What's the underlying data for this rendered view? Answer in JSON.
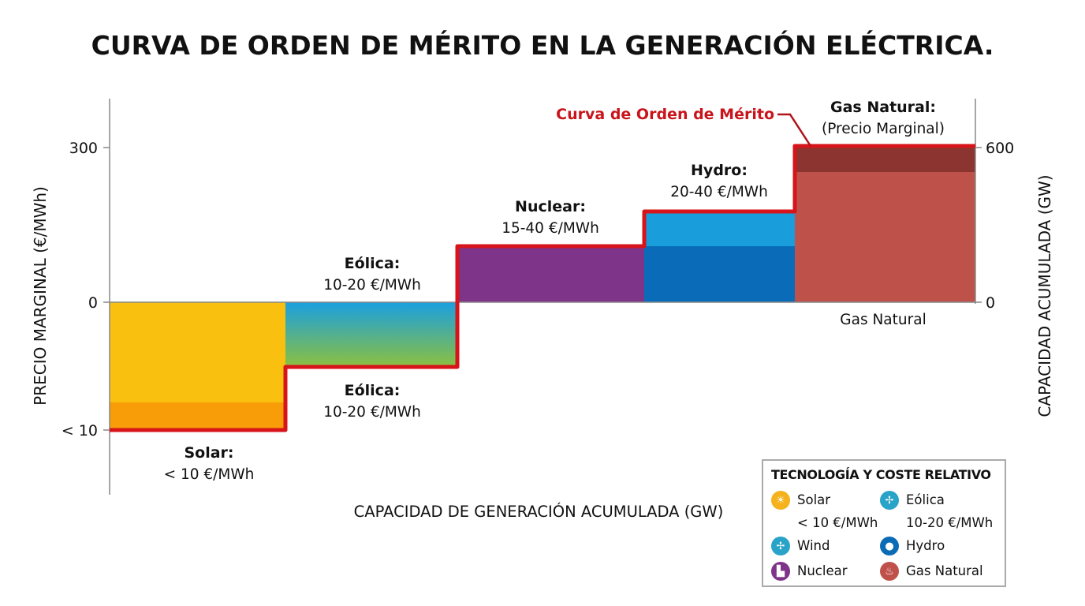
{
  "title": "CURVA DE ORDEN DE MÉRITO EN LA GENERACIÓN ELÉCTRICA.",
  "chart_data": {
    "type": "bar",
    "subtype": "merit-order step chart",
    "xlabel": "CAPACIDAD DE GENERACIÓN ACUMULADA (GW)",
    "ylabel": "PRECIO MARGINAL (€/MWh)",
    "ylabel_right": "CAPACIDAD ACUMULADA (GW)",
    "left_ticks": [
      "300",
      "0",
      "< 10"
    ],
    "right_ticks": [
      "600",
      "0"
    ],
    "curve_label": "Curva de Orden de Mérito",
    "curve_color": "#d7141a",
    "grid": false,
    "blocks": [
      {
        "name": "Solar",
        "label": "Solar:",
        "price": "< 10 €/MWh",
        "colors": [
          "#f9c010",
          "#f89c08"
        ]
      },
      {
        "name": "Eólica",
        "label": "Eólica:",
        "price": "10-20 €/MWh",
        "label_upper": "Eólica:",
        "price_upper": "10-20 €/MWh",
        "colors": [
          "#1a9fe0",
          "#8cc03e"
        ]
      },
      {
        "name": "Nuclear",
        "label": "Nuclear:",
        "price": "15-40 €/MWh",
        "colors": [
          "#7e3489"
        ]
      },
      {
        "name": "Hydro",
        "label": "Hydro:",
        "price": "20-40 €/MWh",
        "colors": [
          "#1a9ddb",
          "#0a6cb8"
        ]
      },
      {
        "name": "Gas Natural",
        "label": "Gas Natural:",
        "price": "(Precio Marginal)",
        "below_label": "Gas Natural",
        "colors": [
          "#8c3530",
          "#be524b"
        ]
      }
    ]
  },
  "legend": {
    "title": "TECNOLOGÍA Y COSTE RELATIVO",
    "items": [
      {
        "icon": "sun-icon",
        "label": "Solar",
        "sub": "< 10 €/MWh",
        "color": "#f5b21a"
      },
      {
        "icon": "wind-turbine-icon",
        "label": "Eólica",
        "sub": "10-20 €/MWh",
        "color": "#2aa3c8"
      },
      {
        "icon": "wind-turbine-icon",
        "label": "Wind",
        "color": "#2aa3c8"
      },
      {
        "icon": "water-drop-icon",
        "label": "Hydro",
        "color": "#0b6cb5"
      },
      {
        "icon": "nuclear-plant-icon",
        "label": "Nuclear",
        "color": "#7e3489"
      },
      {
        "icon": "flame-icon",
        "label": "Gas Natural",
        "color": "#c0504a"
      }
    ]
  }
}
